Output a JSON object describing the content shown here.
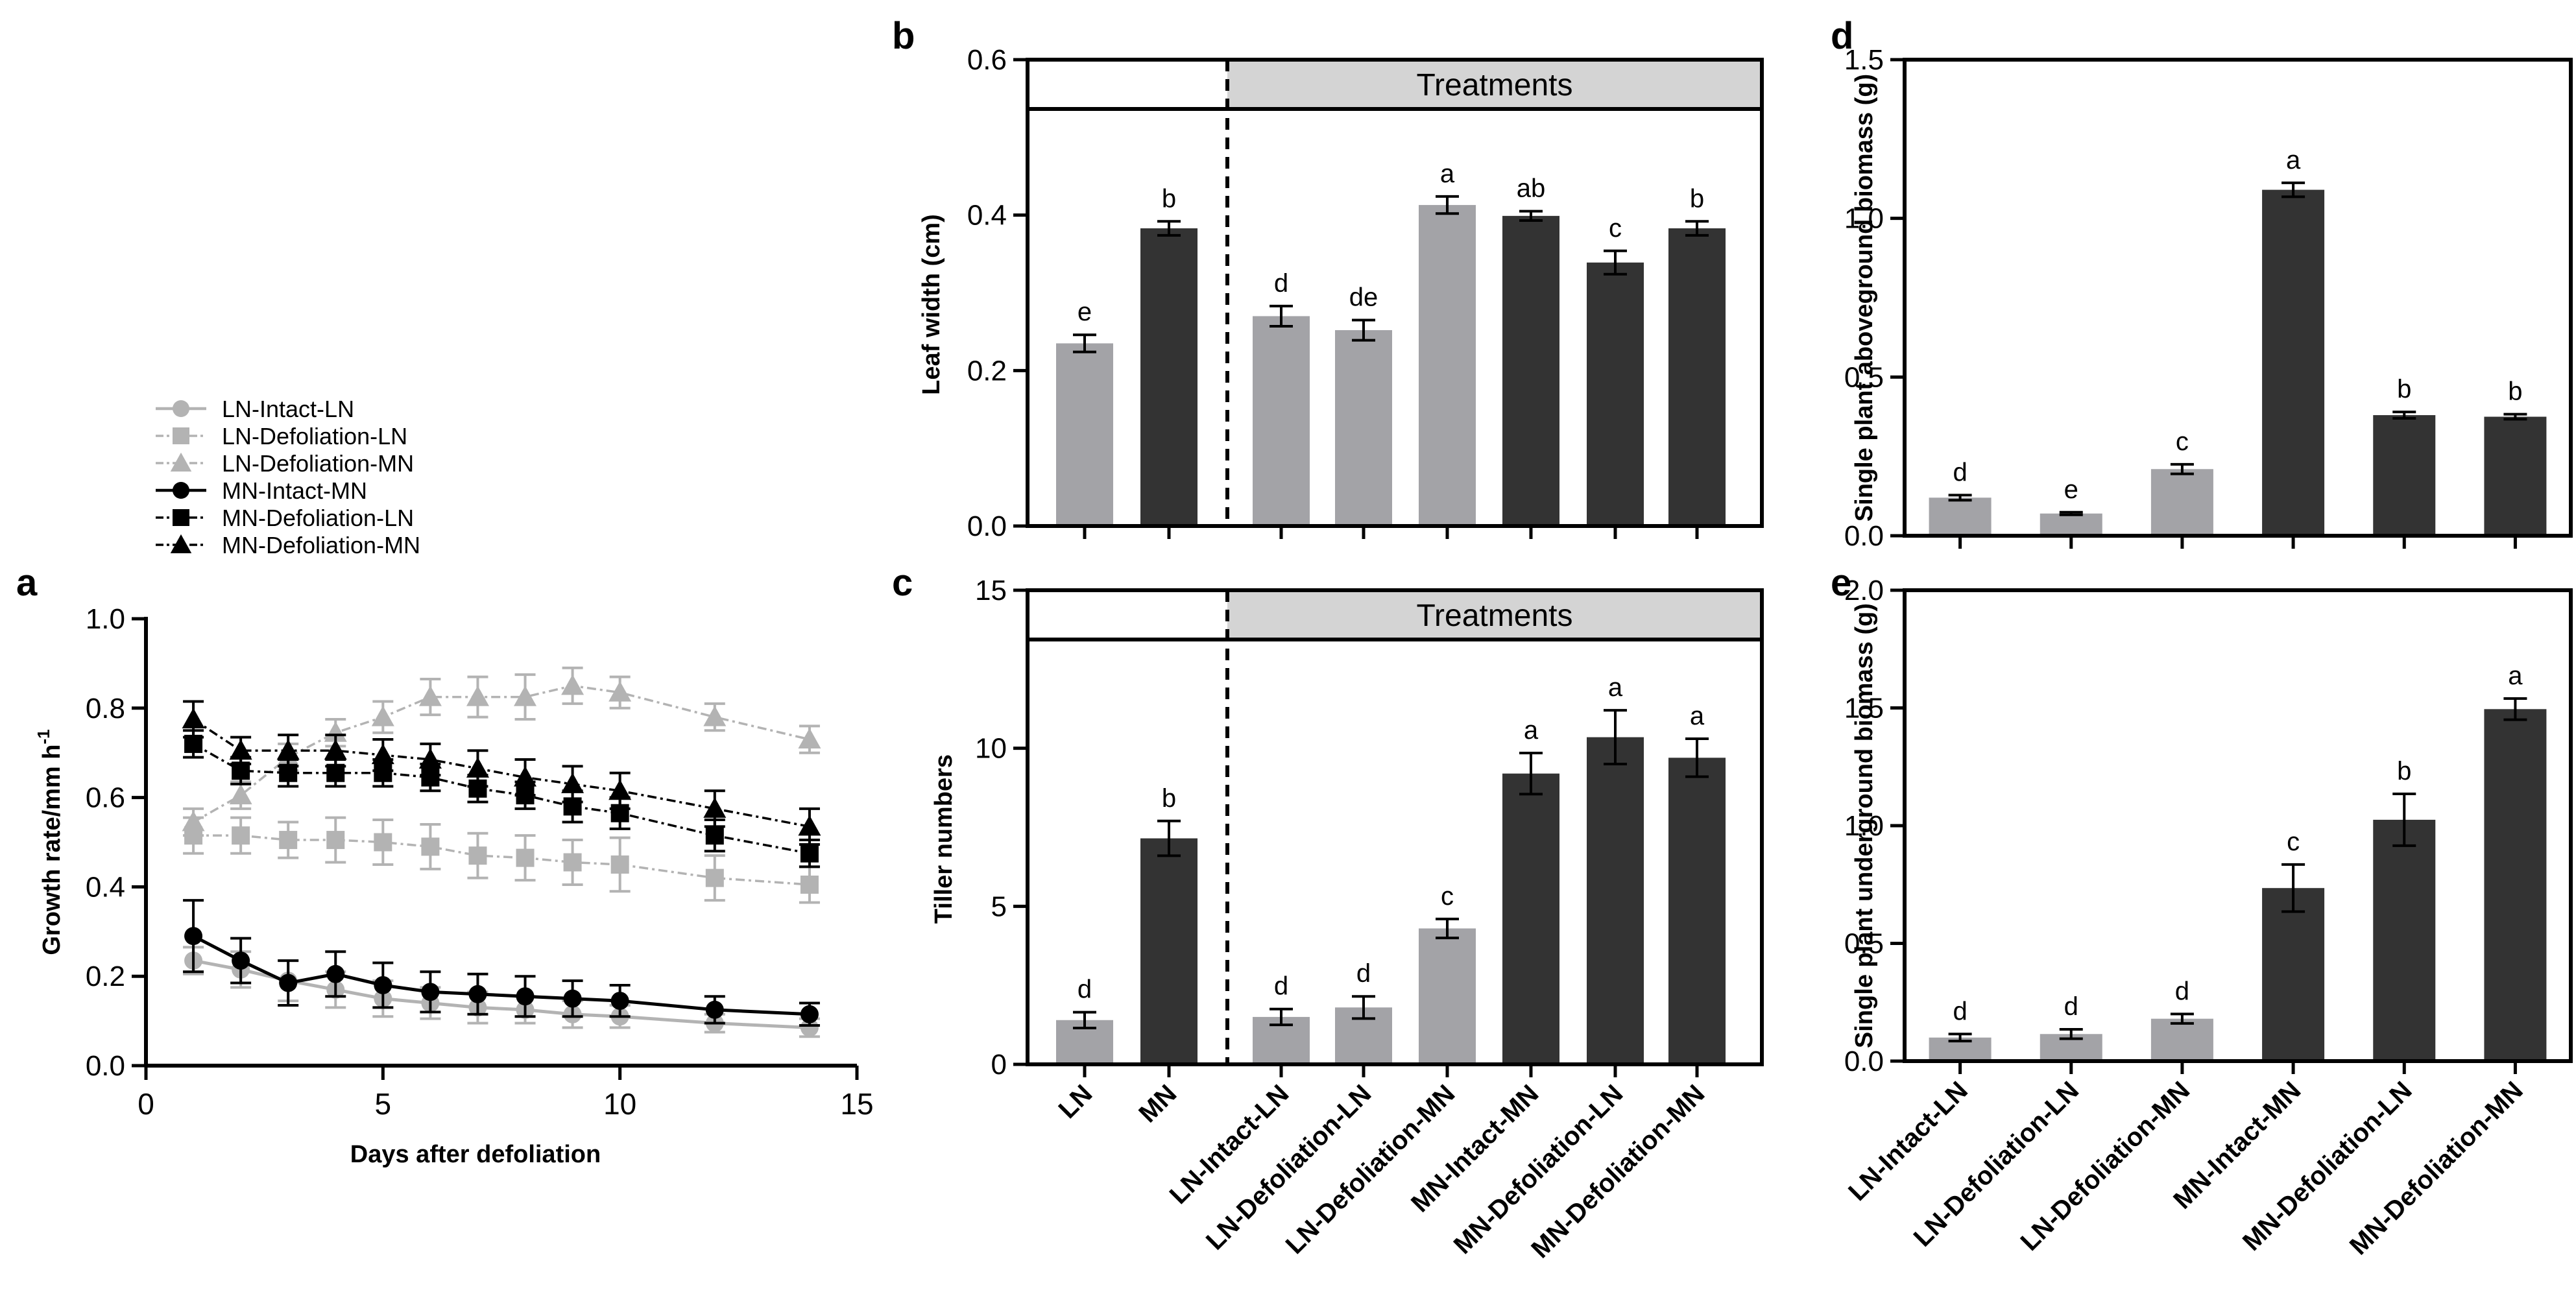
{
  "figure": {
    "description_free": true
  },
  "colors": {
    "gray": "#a3a3a7",
    "dark": "#333333",
    "ln_line": "#b3b3b3",
    "black": "#000000",
    "band": "#d4d4d4"
  },
  "chart_data": [
    {
      "id": "a",
      "panel_label": "a",
      "type": "line",
      "title": "",
      "xlabel": "Days after defoliation",
      "ylabel": "Growth rate/mm h",
      "ylabel_sup": "-1",
      "xlim": [
        0,
        15
      ],
      "ylim": [
        0,
        1.0
      ],
      "xticks": [
        "0",
        "5",
        "10",
        "15"
      ],
      "yticks": [
        "0.0",
        "0.2",
        "0.4",
        "0.6",
        "0.8",
        "1.0"
      ],
      "x": [
        1,
        2,
        3,
        4,
        5,
        6,
        7,
        8,
        9,
        10,
        12,
        14
      ],
      "legend_position": "top-left",
      "series": [
        {
          "name": "LN-Intact-LN",
          "color": "#b3b3b3",
          "marker": "circle",
          "dashed": false,
          "values": [
            0.235,
            0.215,
            0.19,
            0.17,
            0.15,
            0.14,
            0.13,
            0.125,
            0.115,
            0.11,
            0.095,
            0.085
          ],
          "errors": [
            0.03,
            0.04,
            0.045,
            0.04,
            0.04,
            0.035,
            0.035,
            0.03,
            0.03,
            0.025,
            0.02,
            0.02
          ]
        },
        {
          "name": "LN-Defoliation-LN",
          "color": "#b3b3b3",
          "marker": "square",
          "dashed": true,
          "values": [
            0.515,
            0.515,
            0.505,
            0.505,
            0.5,
            0.49,
            0.47,
            0.465,
            0.455,
            0.45,
            0.42,
            0.405
          ],
          "errors": [
            0.04,
            0.04,
            0.04,
            0.05,
            0.05,
            0.05,
            0.05,
            0.05,
            0.05,
            0.06,
            0.05,
            0.04
          ]
        },
        {
          "name": "LN-Defoliation-MN",
          "color": "#b3b3b3",
          "marker": "triangle",
          "dashed": true,
          "values": [
            0.545,
            0.605,
            0.69,
            0.745,
            0.78,
            0.825,
            0.825,
            0.825,
            0.85,
            0.835,
            0.78,
            0.73
          ],
          "errors": [
            0.03,
            0.03,
            0.03,
            0.03,
            0.035,
            0.04,
            0.045,
            0.05,
            0.04,
            0.035,
            0.03,
            0.03
          ]
        },
        {
          "name": "MN-Intact-MN",
          "color": "#000000",
          "marker": "circle",
          "dashed": false,
          "values": [
            0.29,
            0.235,
            0.185,
            0.205,
            0.18,
            0.165,
            0.16,
            0.155,
            0.15,
            0.145,
            0.125,
            0.115
          ],
          "errors": [
            0.08,
            0.05,
            0.05,
            0.05,
            0.05,
            0.045,
            0.045,
            0.045,
            0.04,
            0.035,
            0.03,
            0.025
          ]
        },
        {
          "name": "MN-Defoliation-LN",
          "color": "#000000",
          "marker": "square",
          "dashed": true,
          "values": [
            0.72,
            0.66,
            0.655,
            0.655,
            0.655,
            0.645,
            0.62,
            0.605,
            0.58,
            0.565,
            0.515,
            0.475
          ],
          "errors": [
            0.03,
            0.03,
            0.03,
            0.03,
            0.03,
            0.03,
            0.03,
            0.03,
            0.035,
            0.035,
            0.035,
            0.03
          ]
        },
        {
          "name": "MN-Defoliation-MN",
          "color": "#000000",
          "marker": "triangle",
          "dashed": true,
          "values": [
            0.775,
            0.705,
            0.705,
            0.705,
            0.695,
            0.685,
            0.665,
            0.645,
            0.63,
            0.615,
            0.575,
            0.535
          ],
          "errors": [
            0.04,
            0.03,
            0.035,
            0.035,
            0.035,
            0.035,
            0.04,
            0.04,
            0.04,
            0.04,
            0.04,
            0.04
          ]
        }
      ]
    },
    {
      "id": "b",
      "panel_label": "b",
      "type": "bar",
      "title": "",
      "xlabel": "",
      "ylabel": "Leaf width (cm)",
      "ylim": [
        0,
        0.6
      ],
      "yticks": [
        "0.0",
        "0.2",
        "0.4",
        "0.6"
      ],
      "band_label": "Treatments",
      "categories": [
        "LN",
        "MN",
        "LN-Intact-LN",
        "LN-Defoliation-LN",
        "LN-Defoliation-MN",
        "MN-Intact-MN",
        "MN-Defoliation-LN",
        "MN-Defoliation-MN"
      ],
      "values": [
        0.235,
        0.383,
        0.27,
        0.252,
        0.413,
        0.399,
        0.339,
        0.383
      ],
      "errors": [
        0.011,
        0.009,
        0.013,
        0.013,
        0.011,
        0.006,
        0.015,
        0.009
      ],
      "colors": [
        "gray",
        "dark",
        "gray",
        "gray",
        "gray",
        "dark",
        "dark",
        "dark"
      ],
      "letters": [
        "e",
        "b",
        "d",
        "de",
        "a",
        "ab",
        "c",
        "b"
      ]
    },
    {
      "id": "c",
      "panel_label": "c",
      "type": "bar",
      "title": "",
      "xlabel": "",
      "ylabel": "Tiller numbers",
      "ylim": [
        0,
        15
      ],
      "yticks": [
        "0",
        "5",
        "10",
        "15"
      ],
      "band_label": "Treatments",
      "categories": [
        "LN",
        "MN",
        "LN-Intact-LN",
        "LN-Defoliation-LN",
        "LN-Defoliation-MN",
        "MN-Intact-MN",
        "MN-Defoliation-LN",
        "MN-Defoliation-MN"
      ],
      "values": [
        1.4,
        7.15,
        1.5,
        1.8,
        4.3,
        9.2,
        10.35,
        9.7
      ],
      "errors": [
        0.25,
        0.55,
        0.25,
        0.35,
        0.3,
        0.65,
        0.85,
        0.6
      ],
      "colors": [
        "gray",
        "dark",
        "gray",
        "gray",
        "gray",
        "dark",
        "dark",
        "dark"
      ],
      "letters": [
        "d",
        "b",
        "d",
        "d",
        "c",
        "a",
        "a",
        "a"
      ]
    },
    {
      "id": "d",
      "panel_label": "d",
      "type": "bar",
      "title": "",
      "xlabel": "",
      "ylabel": "Single plant aboveground biomass (g)",
      "ylim": [
        0,
        1.5
      ],
      "yticks": [
        "0.0",
        "0.5",
        "1.0",
        "1.5"
      ],
      "categories": [
        "LN-Intact-LN",
        "LN-Defoliation-LN",
        "LN-Defoliation-MN",
        "MN-Intact-MN",
        "MN-Defoliation-LN",
        "MN-Defoliation-MN"
      ],
      "values": [
        0.12,
        0.07,
        0.21,
        1.09,
        0.38,
        0.375
      ],
      "errors": [
        0.008,
        0.004,
        0.015,
        0.022,
        0.01,
        0.008
      ],
      "colors": [
        "gray",
        "gray",
        "gray",
        "dark",
        "dark",
        "dark"
      ],
      "letters": [
        "d",
        "e",
        "c",
        "a",
        "b",
        "b"
      ]
    },
    {
      "id": "e",
      "panel_label": "e",
      "type": "bar",
      "title": "",
      "xlabel": "",
      "ylabel": "Single plant underground biomass (g)",
      "ylim": [
        0,
        2.0
      ],
      "yticks": [
        "0.0",
        "0.5",
        "1.0",
        "1.5",
        "2.0"
      ],
      "categories": [
        "LN-Intact-LN",
        "LN-Defoliation-LN",
        "LN-Defoliation-MN",
        "MN-Intact-MN",
        "MN-Defoliation-LN",
        "MN-Defoliation-MN"
      ],
      "values": [
        0.1,
        0.115,
        0.18,
        0.735,
        1.025,
        1.495
      ],
      "errors": [
        0.015,
        0.02,
        0.02,
        0.1,
        0.11,
        0.045
      ],
      "colors": [
        "gray",
        "gray",
        "gray",
        "dark",
        "dark",
        "dark"
      ],
      "letters": [
        "d",
        "d",
        "d",
        "c",
        "b",
        "a"
      ]
    }
  ]
}
